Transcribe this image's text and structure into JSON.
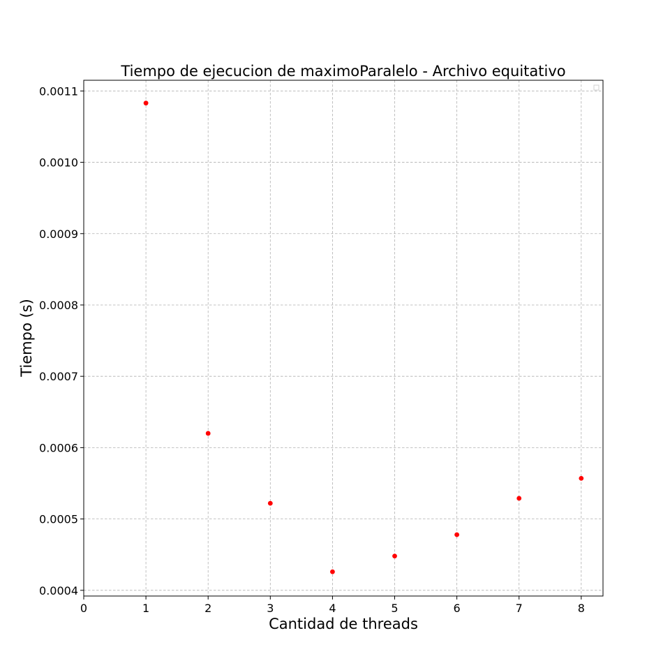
{
  "chart_data": {
    "type": "scatter",
    "title": "Tiempo de ejecucion de maximoParalelo - Archivo equitativo",
    "xlabel": "Cantidad de threads",
    "ylabel": "Tiempo (s)",
    "xlim": [
      0,
      8.35
    ],
    "ylim": [
      0.000392,
      0.001115
    ],
    "xticks": [
      0,
      1,
      2,
      3,
      4,
      5,
      6,
      7,
      8
    ],
    "xtick_labels": [
      "0",
      "1",
      "2",
      "3",
      "4",
      "5",
      "6",
      "7",
      "8"
    ],
    "yticks": [
      0.0004,
      0.0005,
      0.0006,
      0.0007,
      0.0008,
      0.0009,
      0.001,
      0.0011
    ],
    "ytick_labels": [
      "0.0004",
      "0.0005",
      "0.0006",
      "0.0007",
      "0.0008",
      "0.0009",
      "0.0010",
      "0.0011"
    ],
    "grid": true,
    "legend": "top-right",
    "series": [
      {
        "color": "#ff0000",
        "x": [
          1,
          2,
          3,
          4,
          5,
          6,
          7,
          8
        ],
        "y": [
          0.001083,
          0.00062,
          0.000522,
          0.000426,
          0.000448,
          0.000478,
          0.000529,
          0.000557
        ]
      }
    ]
  }
}
